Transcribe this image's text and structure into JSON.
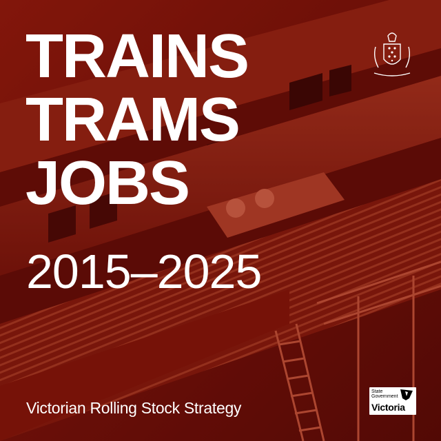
{
  "headline": {
    "lines": [
      "TRAINS",
      "TRAMS",
      "JOBS"
    ],
    "years": "2015–2025"
  },
  "subtitle": "Victorian Rolling Stock Strategy",
  "logo": {
    "small_text_1": "State",
    "small_text_2": "Government",
    "big_text": "Victoria",
    "icon": "victoria-map-icon"
  },
  "crest": {
    "icon": "coat-of-arms-icon"
  },
  "colors": {
    "background_tint": "#7a1509",
    "text": "#ffffff"
  }
}
